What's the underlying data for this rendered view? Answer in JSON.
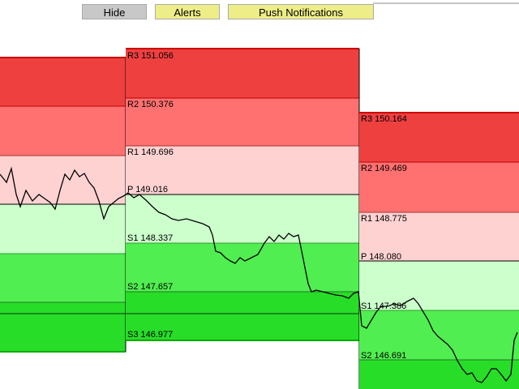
{
  "buttons": [
    "Hide",
    "Alerts",
    "Push Notifications"
  ],
  "pivot_blocks": [
    {
      "levels": []
    },
    {
      "levels": [
        "R3 151.056",
        "R2 150.376",
        "R1 149.696",
        "P 149.016",
        "S1 148.337",
        "S2 147.657",
        "S3 146.977"
      ]
    },
    {
      "levels": [
        "R3 150.164",
        "R2 149.469",
        "R1 148.775",
        "P 148.080",
        "S1 147.386",
        "S2 146.691"
      ]
    }
  ]
}
